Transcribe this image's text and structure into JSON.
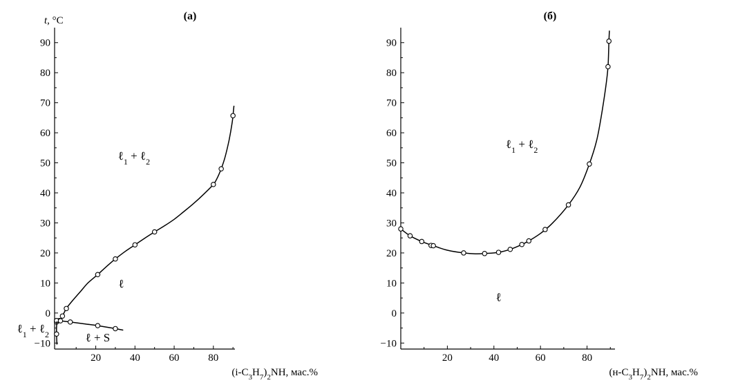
{
  "chart_data": [
    {
      "type": "line",
      "title": "(а)",
      "ylabel": "t, °C",
      "xlabel": "(i-C3H7)2NH, мас.%",
      "xlim": [
        -1,
        91
      ],
      "ylim": [
        -12,
        95
      ],
      "yticks": [
        -10,
        0,
        10,
        20,
        30,
        40,
        50,
        60,
        70,
        80,
        90
      ],
      "xticks": [
        20,
        40,
        60,
        80
      ],
      "grid": false,
      "series": [
        {
          "points": [
            [
              0,
              -3
            ],
            [
              1.5,
              -2.5
            ],
            [
              3,
              -1
            ],
            [
              5,
              1.5
            ],
            [
              21,
              12.8
            ],
            [
              30,
              18
            ],
            [
              40,
              22.7
            ],
            [
              50,
              27
            ],
            [
              80,
              42.8
            ],
            [
              84,
              48
            ],
            [
              90,
              65.7
            ]
          ],
          "curve": [
            [
              -1,
              -3.3
            ],
            [
              0,
              -3
            ],
            [
              1.5,
              -2.5
            ],
            [
              3,
              -1
            ],
            [
              5,
              1.5
            ],
            [
              8,
              4
            ],
            [
              12,
              7
            ],
            [
              16,
              10
            ],
            [
              21,
              12.8
            ],
            [
              25,
              15.2
            ],
            [
              30,
              18
            ],
            [
              35,
              20.5
            ],
            [
              40,
              22.7
            ],
            [
              45,
              24.9
            ],
            [
              50,
              27
            ],
            [
              55,
              29
            ],
            [
              60,
              31.2
            ],
            [
              65,
              33.8
            ],
            [
              70,
              36.5
            ],
            [
              75,
              39.5
            ],
            [
              80,
              42.8
            ],
            [
              82,
              45
            ],
            [
              84,
              48
            ],
            [
              86,
              52
            ],
            [
              88,
              57.5
            ],
            [
              89.5,
              63
            ],
            [
              90,
              65.7
            ],
            [
              90.5,
              69
            ]
          ]
        },
        {
          "points": [
            [
              0,
              -2.5
            ],
            [
              2,
              -2.6
            ],
            [
              7,
              -3
            ],
            [
              21,
              -4.2
            ],
            [
              30,
              -5.2
            ]
          ],
          "curve": [
            [
              -1,
              -2.4
            ],
            [
              0,
              -2.5
            ],
            [
              2,
              -2.6
            ],
            [
              7,
              -3
            ],
            [
              14,
              -3.6
            ],
            [
              21,
              -4.2
            ],
            [
              30,
              -5.2
            ],
            [
              34,
              -5.7
            ]
          ]
        },
        {
          "points": [
            [
              0,
              -7
            ]
          ],
          "curve": [
            [
              0.2,
              -2.8
            ],
            [
              0,
              -5
            ],
            [
              0,
              -7
            ],
            [
              0.2,
              -10.5
            ]
          ]
        }
      ],
      "annotations": [
        {
          "text": "ℓ₁ + ℓ₂",
          "x": 39.5,
          "y": 51
        },
        {
          "text": "ℓ",
          "x": 33,
          "y": 8.5
        },
        {
          "text": "ℓ + S",
          "x": 21,
          "y": -9.5
        },
        {
          "text": "ℓ₁ + ℓ₂",
          "x": -12,
          "y": -6.5
        }
      ]
    },
    {
      "type": "line",
      "title": "(б)",
      "ylabel": "",
      "xlabel": "(н-C3H7)2NH, мас.%",
      "xlim": [
        0,
        92
      ],
      "ylim": [
        -12,
        95
      ],
      "yticks": [
        -10,
        0,
        10,
        20,
        30,
        40,
        50,
        60,
        70,
        80,
        90
      ],
      "xticks": [
        20,
        40,
        60,
        80
      ],
      "grid": false,
      "series": [
        {
          "points": [
            [
              0,
              28
            ],
            [
              4,
              25.7
            ],
            [
              9,
              23.8
            ],
            [
              13,
              22.5
            ],
            [
              14,
              22.4
            ],
            [
              27,
              20
            ],
            [
              36,
              19.8
            ],
            [
              42,
              20.2
            ],
            [
              47,
              21.2
            ],
            [
              52,
              22.8
            ],
            [
              55,
              24
            ],
            [
              62,
              27.8
            ],
            [
              72,
              36
            ],
            [
              81,
              49.6
            ],
            [
              89,
              82
            ],
            [
              89.4,
              90.5
            ]
          ],
          "curve": [
            [
              0,
              28
            ],
            [
              4,
              25.7
            ],
            [
              9,
              23.8
            ],
            [
              14,
              22.4
            ],
            [
              20,
              20.9
            ],
            [
              27,
              20
            ],
            [
              32,
              19.7
            ],
            [
              36,
              19.8
            ],
            [
              42,
              20.2
            ],
            [
              47,
              21.2
            ],
            [
              52,
              22.8
            ],
            [
              55,
              24
            ],
            [
              60,
              26.5
            ],
            [
              65,
              29.8
            ],
            [
              72,
              36
            ],
            [
              77,
              42
            ],
            [
              81,
              49.6
            ],
            [
              84,
              57
            ],
            [
              86,
              65
            ],
            [
              88,
              75
            ],
            [
              89,
              82
            ],
            [
              89.4,
              90.5
            ],
            [
              89.6,
              94
            ]
          ]
        }
      ],
      "annotations": [
        {
          "text": "ℓ₁ + ℓ₂",
          "x": 52,
          "y": 55
        },
        {
          "text": "ℓ",
          "x": 42,
          "y": 4
        }
      ]
    }
  ]
}
